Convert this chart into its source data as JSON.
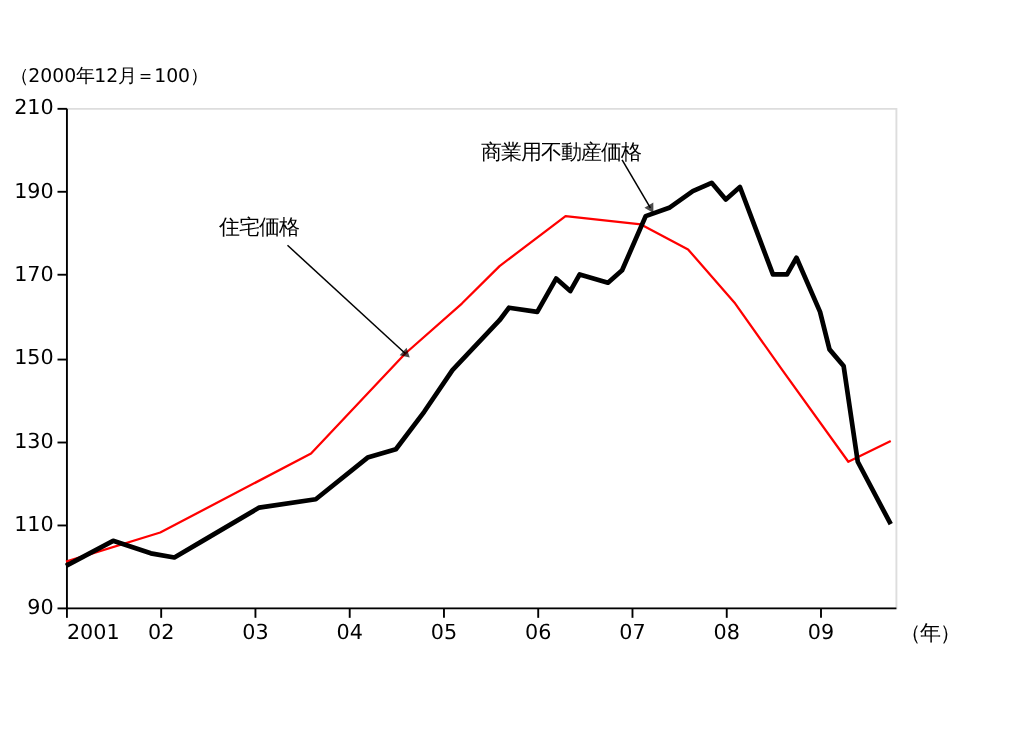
{
  "chart_data": {
    "type": "line",
    "ylabel": "（2000年12月＝100）",
    "xlabel": "（年）",
    "xlim": [
      2001,
      2009.8
    ],
    "xticks": [
      {
        "value": 2001,
        "label": "2001"
      },
      {
        "value": 2002,
        "label": "02"
      },
      {
        "value": 2003,
        "label": "03"
      },
      {
        "value": 2004,
        "label": "04"
      },
      {
        "value": 2005,
        "label": "05"
      },
      {
        "value": 2006,
        "label": "06"
      },
      {
        "value": 2007,
        "label": "07"
      },
      {
        "value": 2008,
        "label": "08"
      },
      {
        "value": 2009,
        "label": "09"
      }
    ],
    "ylim": [
      90,
      210
    ],
    "yticks": [
      90,
      110,
      130,
      150,
      170,
      190,
      210
    ],
    "series": [
      {
        "color": "#ff0000",
        "x": [
          2001.0,
          2002.0,
          2003.6,
          2004.6,
          2005.2,
          2005.6,
          2006.3,
          2007.1,
          2007.6,
          2008.1,
          2008.6,
          2009.3,
          2009.75
        ],
        "values": [
          101,
          108,
          127,
          151,
          163,
          172,
          184,
          182,
          176,
          163,
          147,
          125,
          130
        ]
      },
      {
        "color": "#000000",
        "x": [
          2001.0,
          2001.5,
          2001.9,
          2002.15,
          2002.45,
          2003.05,
          2003.65,
          2004.2,
          2004.5,
          2004.8,
          2005.1,
          2005.6,
          2005.7,
          2006.0,
          2006.2,
          2006.35,
          2006.45,
          2006.75,
          2006.9,
          2007.15,
          2007.4,
          2007.65,
          2007.85,
          2008.0,
          2008.15,
          2008.5,
          2008.65,
          2008.75,
          2009.0,
          2009.1,
          2009.25,
          2009.4,
          2009.75
        ],
        "values": [
          100,
          106,
          103,
          102,
          106,
          114,
          116,
          126,
          128,
          137,
          147,
          159,
          162,
          161,
          169,
          166,
          170,
          168,
          171,
          184,
          186,
          190,
          192,
          188,
          191,
          170,
          170,
          174,
          161,
          152,
          148,
          125,
          110
        ]
      }
    ],
    "annotations": [
      {
        "text": "住宅価格",
        "x": 2004.6,
        "y": 151
      },
      {
        "text": "商業用不動産価格",
        "x": 2007.2,
        "y": 186
      }
    ]
  }
}
